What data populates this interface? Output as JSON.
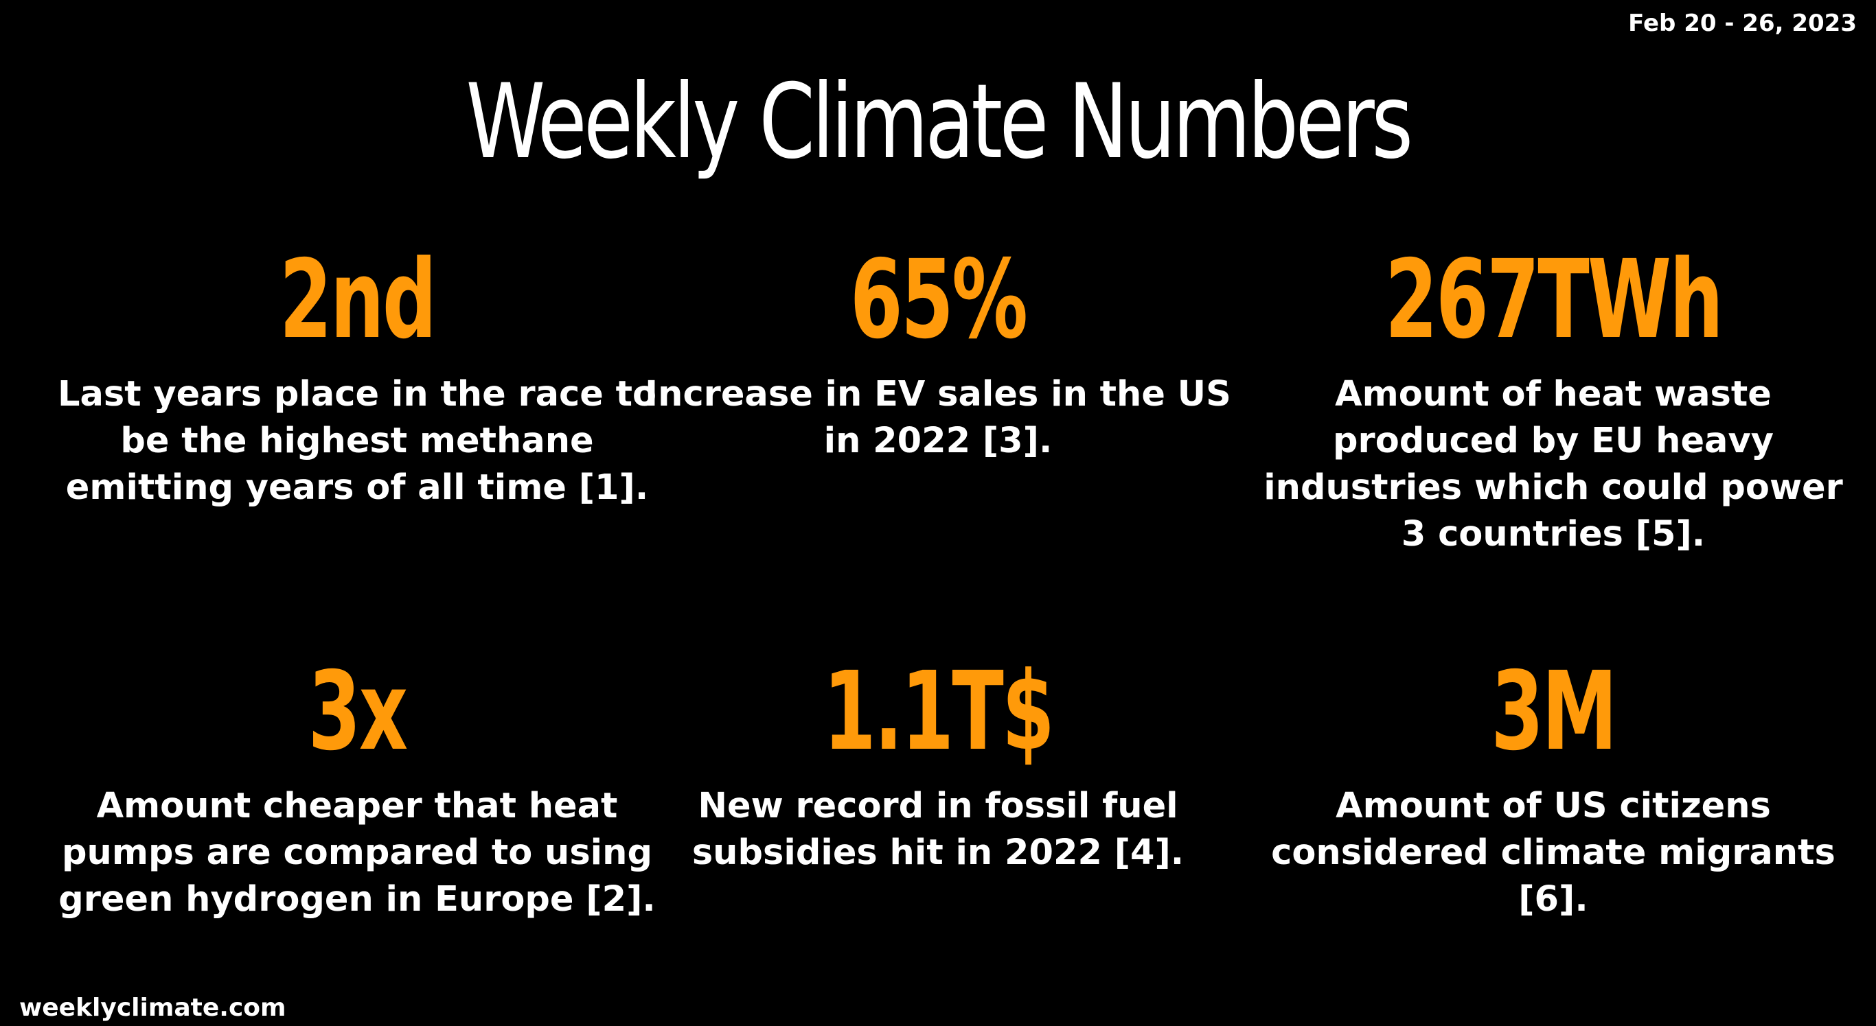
{
  "header": {
    "date_range": "Feb 20 - 26, 2023",
    "title": "Weekly Climate Numbers"
  },
  "stats": [
    {
      "value": "2nd",
      "description": "Last years place in the race to be the highest methane emitting years of all time [1]."
    },
    {
      "value": "65%",
      "description": "Increase in EV sales in the US in 2022 [3]."
    },
    {
      "value": "267TWh",
      "description": "Amount of heat waste produced by EU heavy industries which could power 3 countries [5]."
    },
    {
      "value": "3x",
      "description": "Amount cheaper that heat pumps are compared to using green hydrogen in Europe [2]."
    },
    {
      "value": "1.1T$",
      "description": "New record in fossil fuel subsidies hit in 2022 [4]."
    },
    {
      "value": "3M",
      "description": "Amount of US citizens considered climate migrants [6]."
    }
  ],
  "footer": {
    "site": "weeklyclimate.com"
  },
  "colors": {
    "background": "#000000",
    "accent": "#ff9a0a",
    "text": "#ffffff"
  }
}
